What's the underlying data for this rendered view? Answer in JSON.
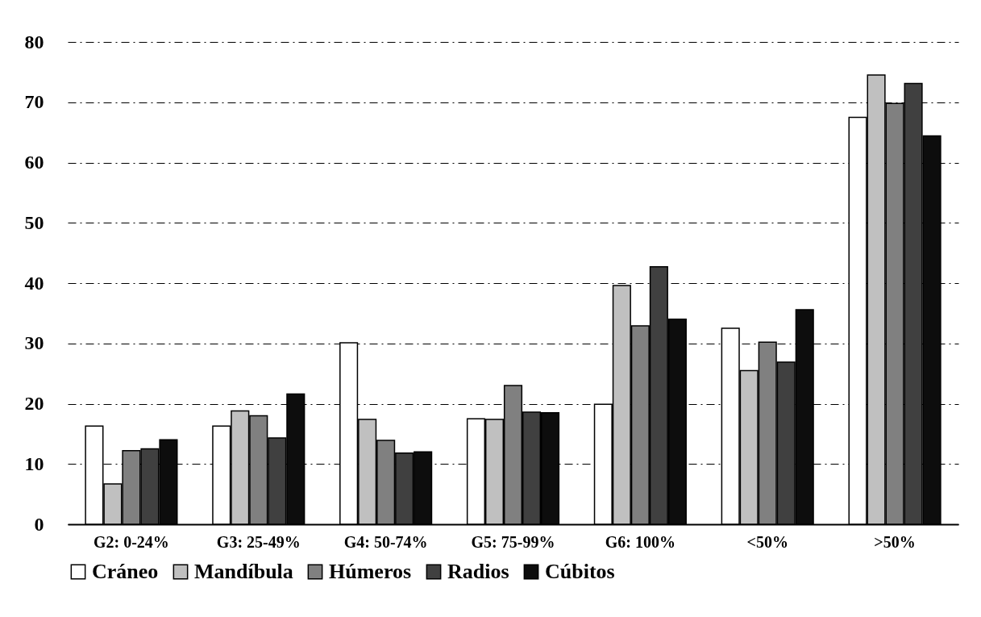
{
  "chart_data": {
    "type": "bar",
    "categories": [
      "G2: 0-24%",
      "G3: 25-49%",
      "G4: 50-74%",
      "G5: 75-99%",
      "G6: 100%",
      "<50%",
      ">50%"
    ],
    "series": [
      {
        "name": "Cráneo",
        "color": "#ffffff",
        "values": [
          16.3,
          16.3,
          30.1,
          17.5,
          19.9,
          32.5,
          67.5
        ]
      },
      {
        "name": "Mandíbula",
        "color": "#c0c0c0",
        "values": [
          6.7,
          18.8,
          17.4,
          17.4,
          39.6,
          25.5,
          74.5
        ]
      },
      {
        "name": "Húmeros",
        "color": "#808080",
        "values": [
          12.2,
          18.0,
          13.9,
          23.0,
          32.9,
          30.2,
          69.8
        ]
      },
      {
        "name": "Radios",
        "color": "#404040",
        "values": [
          12.5,
          14.3,
          11.8,
          18.6,
          42.7,
          26.9,
          73.1
        ]
      },
      {
        "name": "Cúbitos",
        "color": "#0d0d0d",
        "values": [
          14.0,
          21.6,
          12.0,
          18.5,
          34.0,
          35.6,
          64.4
        ]
      }
    ],
    "ylim": [
      0,
      80
    ],
    "yticks": [
      0,
      10,
      20,
      30,
      40,
      50,
      60,
      70,
      80
    ],
    "grid": "y",
    "legend": "bottom"
  }
}
